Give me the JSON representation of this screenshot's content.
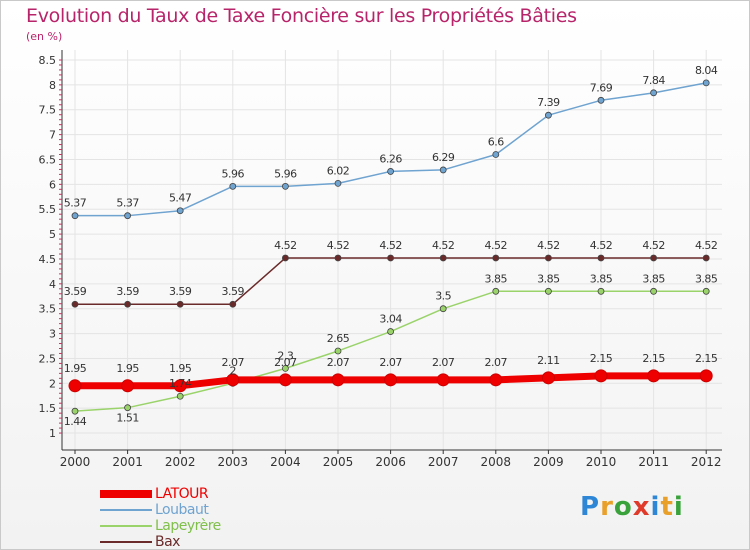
{
  "header": {
    "title": "Evolution du Taux de Taxe Foncière sur les Propriétés Bâties",
    "subtitle": "(en %)"
  },
  "logo": {
    "letters": [
      "P",
      "r",
      "o",
      "x",
      "i",
      "t",
      "i"
    ],
    "colors": [
      "#2e86d6",
      "#e8a02a",
      "#3aa23a",
      "#e03a2a",
      "#2e86d6",
      "#e8a02a",
      "#3aa23a"
    ]
  },
  "chart_data": {
    "type": "line",
    "title": "Evolution du Taux de Taxe Foncière sur les Propriétés Bâties",
    "ylabel": "(en %)",
    "xlabel": "",
    "x": [
      "2000",
      "2001",
      "2002",
      "2003",
      "2004",
      "2005",
      "2006",
      "2007",
      "2008",
      "2009",
      "2010",
      "2011",
      "2012"
    ],
    "ylim": [
      0.8,
      8.5
    ],
    "yticks": [
      "1",
      "1.5",
      "2",
      "2.5",
      "3",
      "3.5",
      "4",
      "4.5",
      "5",
      "5.5",
      "6",
      "6.5",
      "7",
      "7.5",
      "8",
      "8.5"
    ],
    "grid": true,
    "legend_position": "bottom-left",
    "series": [
      {
        "name": "LATOUR",
        "color": "#ee0000",
        "values": [
          1.95,
          1.95,
          1.95,
          2.07,
          2.07,
          2.07,
          2.07,
          2.07,
          2.07,
          2.11,
          2.15,
          2.15,
          2.15
        ],
        "labels": [
          "1.95",
          "1.95",
          "1.95",
          "2.07",
          "2.07",
          "2.07",
          "2.07",
          "2.07",
          "2.07",
          "2.11",
          "2.15",
          "2.15",
          "2.15"
        ]
      },
      {
        "name": "Loubaut",
        "color": "#6fa3d0",
        "values": [
          5.37,
          5.37,
          5.47,
          5.96,
          5.96,
          6.02,
          6.26,
          6.29,
          6.6,
          7.39,
          7.69,
          7.84,
          8.04
        ],
        "labels": [
          "5.37",
          "5.37",
          "5.47",
          "5.96",
          "5.96",
          "6.02",
          "6.26",
          "6.29",
          "6.6",
          "7.39",
          "7.69",
          "7.84",
          "8.04"
        ]
      },
      {
        "name": "Lapeyrère",
        "color": "#9ad36a",
        "values": [
          1.44,
          1.51,
          1.74,
          2.0,
          2.3,
          2.65,
          3.04,
          3.5,
          3.85,
          3.85,
          3.85,
          3.85,
          3.85
        ],
        "labels": [
          "1.44",
          "1.51",
          "1.74",
          "2",
          "2.3",
          "2.65",
          "3.04",
          "3.5",
          "3.85",
          "3.85",
          "3.85",
          "3.85",
          "3.85"
        ]
      },
      {
        "name": "Bax",
        "color": "#6b2a2a",
        "values": [
          3.59,
          3.59,
          3.59,
          3.59,
          4.52,
          4.52,
          4.52,
          4.52,
          4.52,
          4.52,
          4.52,
          4.52,
          4.52
        ],
        "labels": [
          "3.59",
          "3.59",
          "3.59",
          "3.59",
          "4.52",
          "4.52",
          "4.52",
          "4.52",
          "4.52",
          "4.52",
          "4.52",
          "4.52",
          "4.52"
        ]
      }
    ]
  }
}
